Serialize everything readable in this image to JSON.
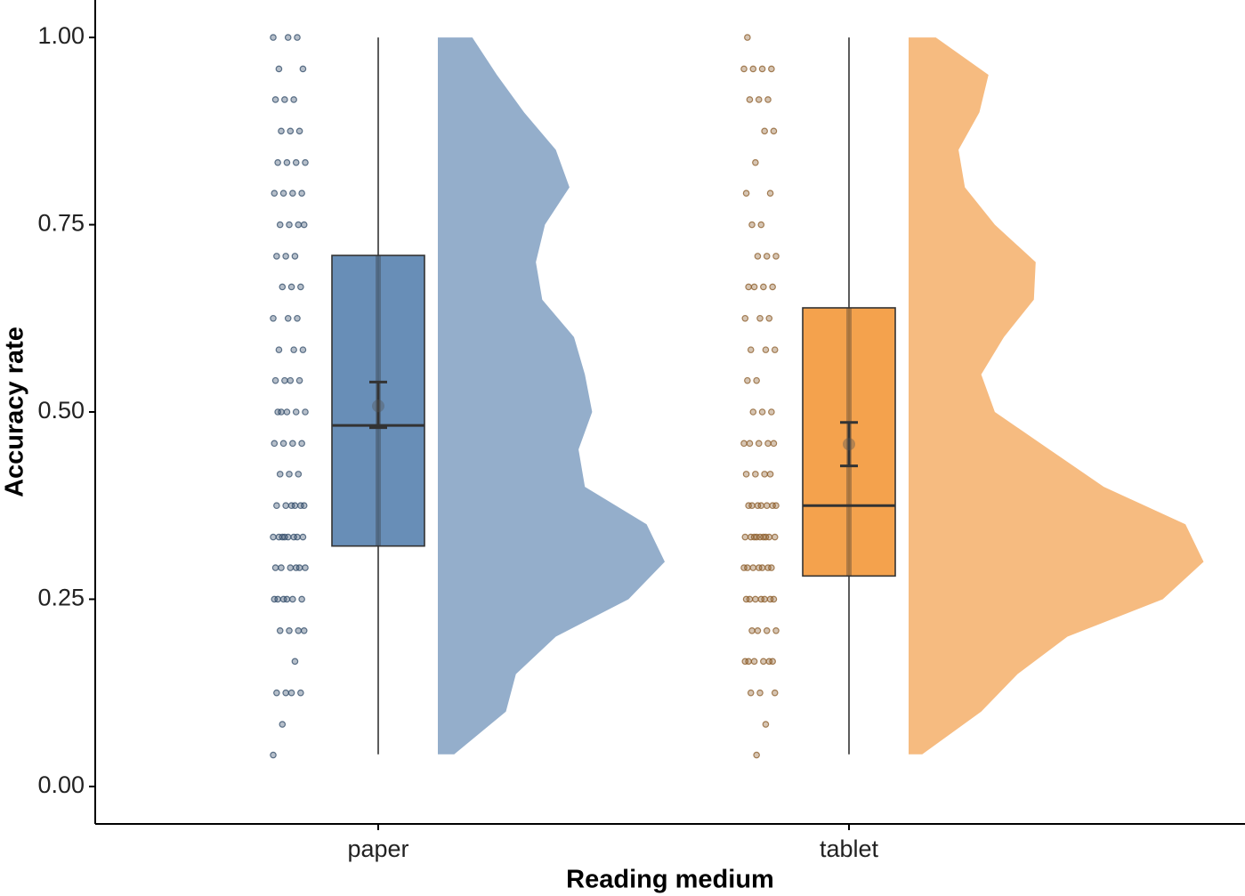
{
  "chart_data": {
    "type": "raincloud",
    "y_label": "Accuracy rate",
    "x_label": "Reading medium",
    "ylim": [
      -0.05,
      1.05
    ],
    "yticks": [
      {
        "value": 0,
        "label": "0.00"
      },
      {
        "value": 0.25,
        "label": "0.25"
      },
      {
        "value": 0.5,
        "label": "0.50"
      },
      {
        "value": 0.75,
        "label": "0.75"
      },
      {
        "value": 1,
        "label": "1.00"
      }
    ],
    "categories": [
      "paper",
      "tablet"
    ],
    "groups": [
      {
        "box_color": "#5b84b1",
        "density_color": "#94aecb",
        "point_color": "#2e4866",
        "whisker": [
          0.043,
          1.0
        ],
        "box": [
          0.321,
          0.482,
          0.709
        ],
        "mean": 0.508,
        "ci": [
          0.479,
          0.54
        ],
        "points": [
          0.042,
          0.083,
          0.125,
          0.125,
          0.125,
          0.125,
          0.167,
          0.208,
          0.208,
          0.208,
          0.208,
          0.25,
          0.25,
          0.25,
          0.25,
          0.25,
          0.25,
          0.292,
          0.292,
          0.292,
          0.292,
          0.292,
          0.292,
          0.333,
          0.333,
          0.333,
          0.333,
          0.333,
          0.333,
          0.333,
          0.333,
          0.375,
          0.375,
          0.375,
          0.375,
          0.375,
          0.375,
          0.417,
          0.417,
          0.417,
          0.458,
          0.458,
          0.458,
          0.458,
          0.5,
          0.5,
          0.5,
          0.5,
          0.5,
          0.542,
          0.542,
          0.542,
          0.542,
          0.583,
          0.583,
          0.583,
          0.625,
          0.625,
          0.625,
          0.667,
          0.667,
          0.667,
          0.708,
          0.708,
          0.708,
          0.75,
          0.75,
          0.75,
          0.75,
          0.792,
          0.792,
          0.792,
          0.792,
          0.833,
          0.833,
          0.833,
          0.833,
          0.875,
          0.875,
          0.875,
          0.917,
          0.917,
          0.917,
          0.958,
          0.958,
          1.0,
          1.0,
          1.0
        ],
        "density": {
          "y": [
            0.043,
            0.1,
            0.15,
            0.2,
            0.25,
            0.3,
            0.35,
            0.4,
            0.45,
            0.5,
            0.55,
            0.6,
            0.65,
            0.7,
            0.75,
            0.8,
            0.85,
            0.9,
            0.95,
            1.0
          ],
          "width": [
            0.18,
            0.75,
            0.86,
            1.3,
            2.1,
            2.5,
            2.3,
            1.62,
            1.55,
            1.7,
            1.62,
            1.5,
            1.15,
            1.08,
            1.18,
            1.45,
            1.3,
            0.95,
            0.65,
            0.38
          ]
        }
      },
      {
        "box_color": "#f39a3e",
        "density_color": "#f6bb80",
        "point_color": "#8a5a26",
        "whisker": [
          0.043,
          1.0
        ],
        "box": [
          0.281,
          0.375,
          0.639
        ],
        "mean": 0.457,
        "ci": [
          0.428,
          0.486
        ],
        "points": [
          0.042,
          0.083,
          0.125,
          0.125,
          0.125,
          0.167,
          0.167,
          0.167,
          0.167,
          0.167,
          0.167,
          0.208,
          0.208,
          0.208,
          0.208,
          0.25,
          0.25,
          0.25,
          0.25,
          0.25,
          0.25,
          0.25,
          0.292,
          0.292,
          0.292,
          0.292,
          0.292,
          0.292,
          0.292,
          0.333,
          0.333,
          0.333,
          0.333,
          0.333,
          0.333,
          0.333,
          0.333,
          0.333,
          0.375,
          0.375,
          0.375,
          0.375,
          0.375,
          0.375,
          0.375,
          0.417,
          0.417,
          0.417,
          0.417,
          0.458,
          0.458,
          0.458,
          0.458,
          0.458,
          0.5,
          0.5,
          0.5,
          0.542,
          0.542,
          0.583,
          0.583,
          0.583,
          0.625,
          0.625,
          0.625,
          0.667,
          0.667,
          0.667,
          0.667,
          0.708,
          0.708,
          0.708,
          0.75,
          0.75,
          0.792,
          0.792,
          0.833,
          0.875,
          0.875,
          0.917,
          0.917,
          0.917,
          0.958,
          0.958,
          0.958,
          0.958,
          1.0
        ],
        "density": {
          "y": [
            0.043,
            0.1,
            0.15,
            0.2,
            0.25,
            0.3,
            0.35,
            0.4,
            0.45,
            0.5,
            0.55,
            0.6,
            0.65,
            0.7,
            0.75,
            0.8,
            0.85,
            0.9,
            0.95,
            1.0
          ],
          "width": [
            0.15,
            0.8,
            1.2,
            1.75,
            2.8,
            3.25,
            3.05,
            2.15,
            1.55,
            0.95,
            0.8,
            1.05,
            1.38,
            1.4,
            0.95,
            0.62,
            0.55,
            0.78,
            0.88,
            0.3
          ]
        }
      }
    ]
  }
}
